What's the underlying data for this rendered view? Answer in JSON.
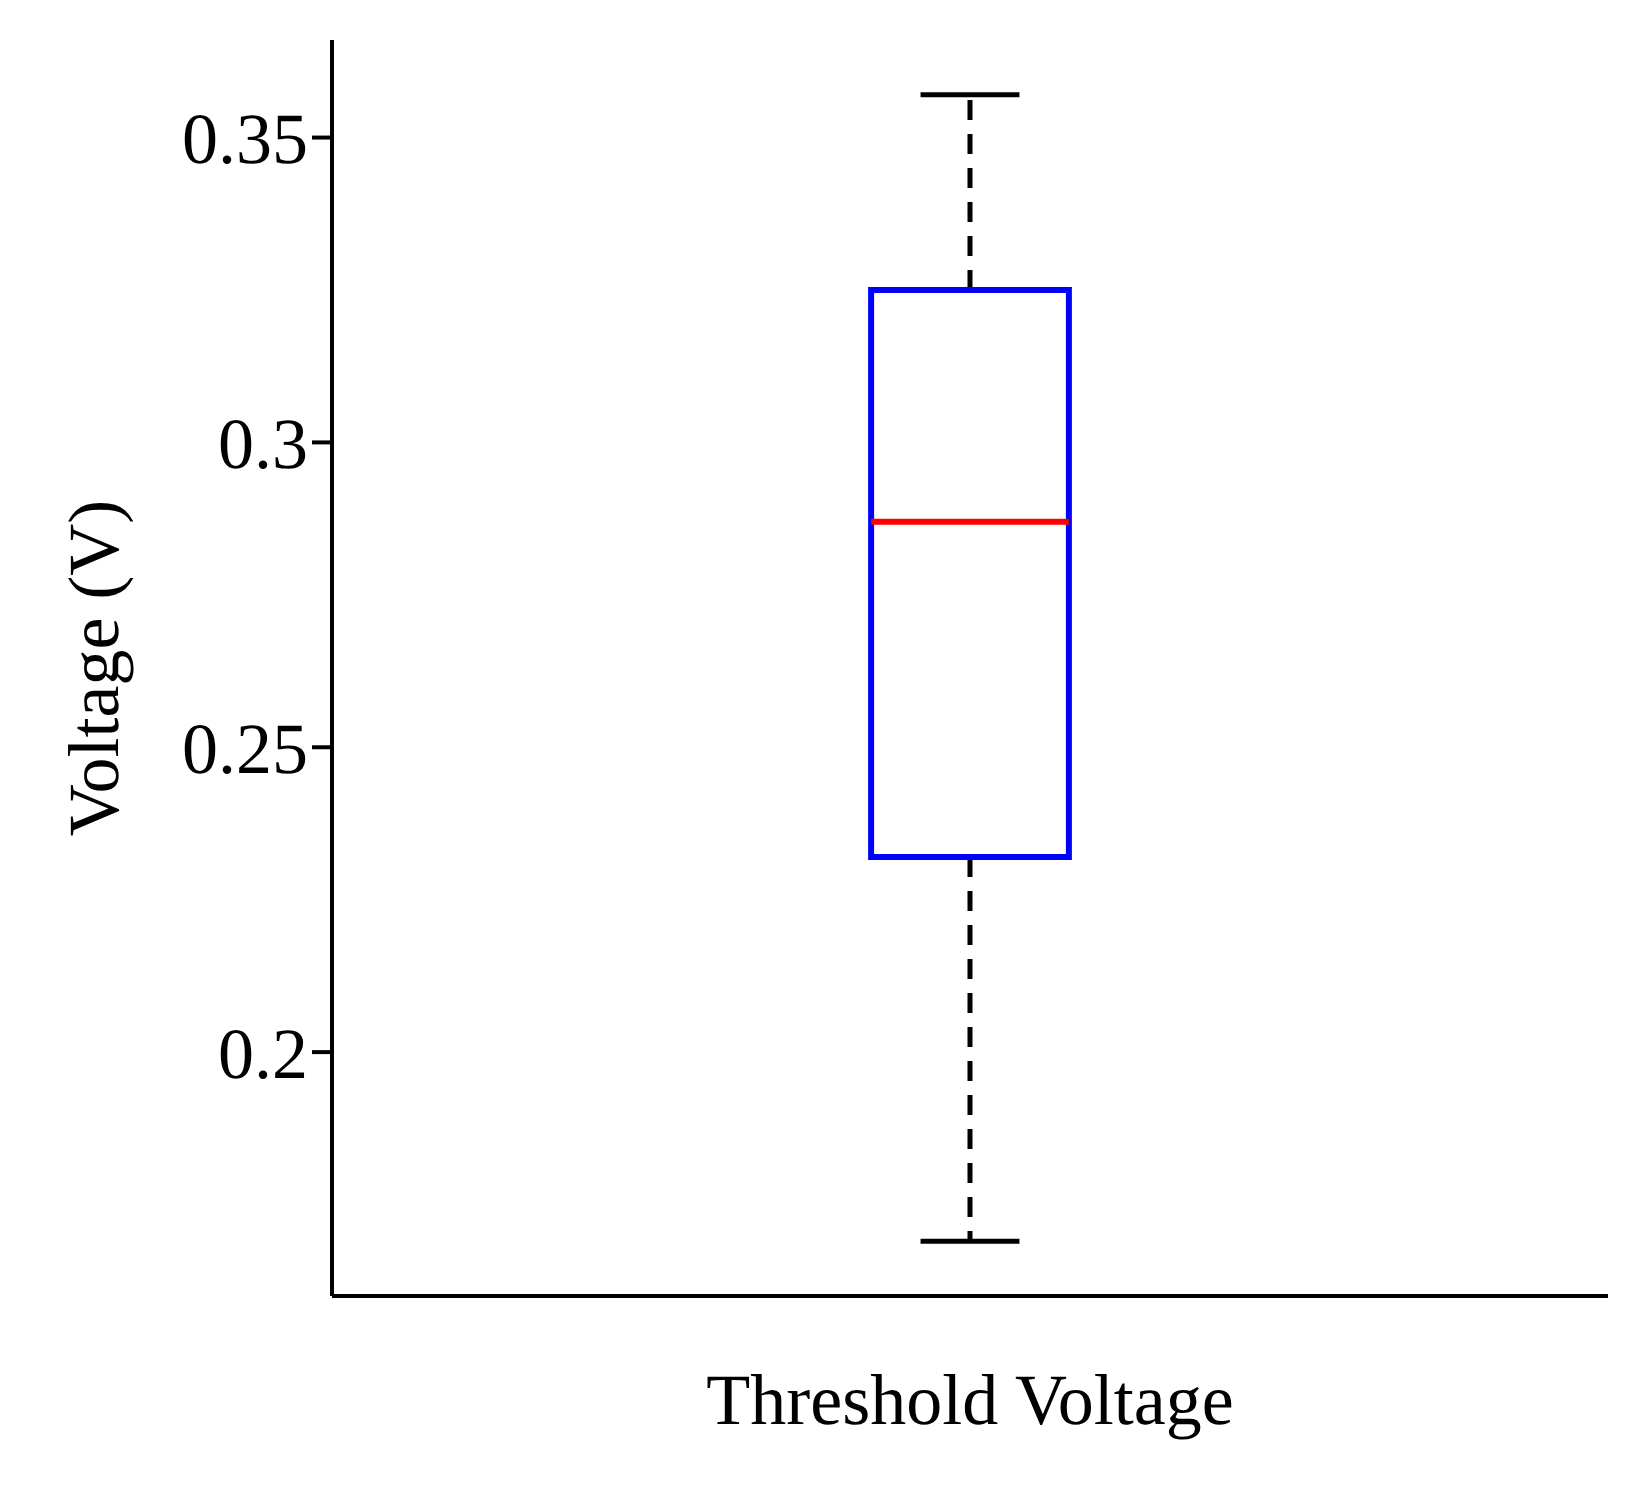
{
  "chart_data": {
    "type": "box",
    "xlabel": "Threshold Voltage",
    "ylabel": "Voltage (V)",
    "categories": [
      null
    ],
    "series": [
      {
        "color": "#0000ff",
        "boxes": [
          {
            "low": 0.169,
            "q1": 0.232,
            "median": 0.287,
            "q3": 0.325,
            "high": 0.357
          }
        ]
      }
    ],
    "ylim": [
      0.16,
      0.366
    ],
    "yticks": [
      0.2,
      0.25,
      0.3,
      0.35
    ],
    "grid": false
  }
}
